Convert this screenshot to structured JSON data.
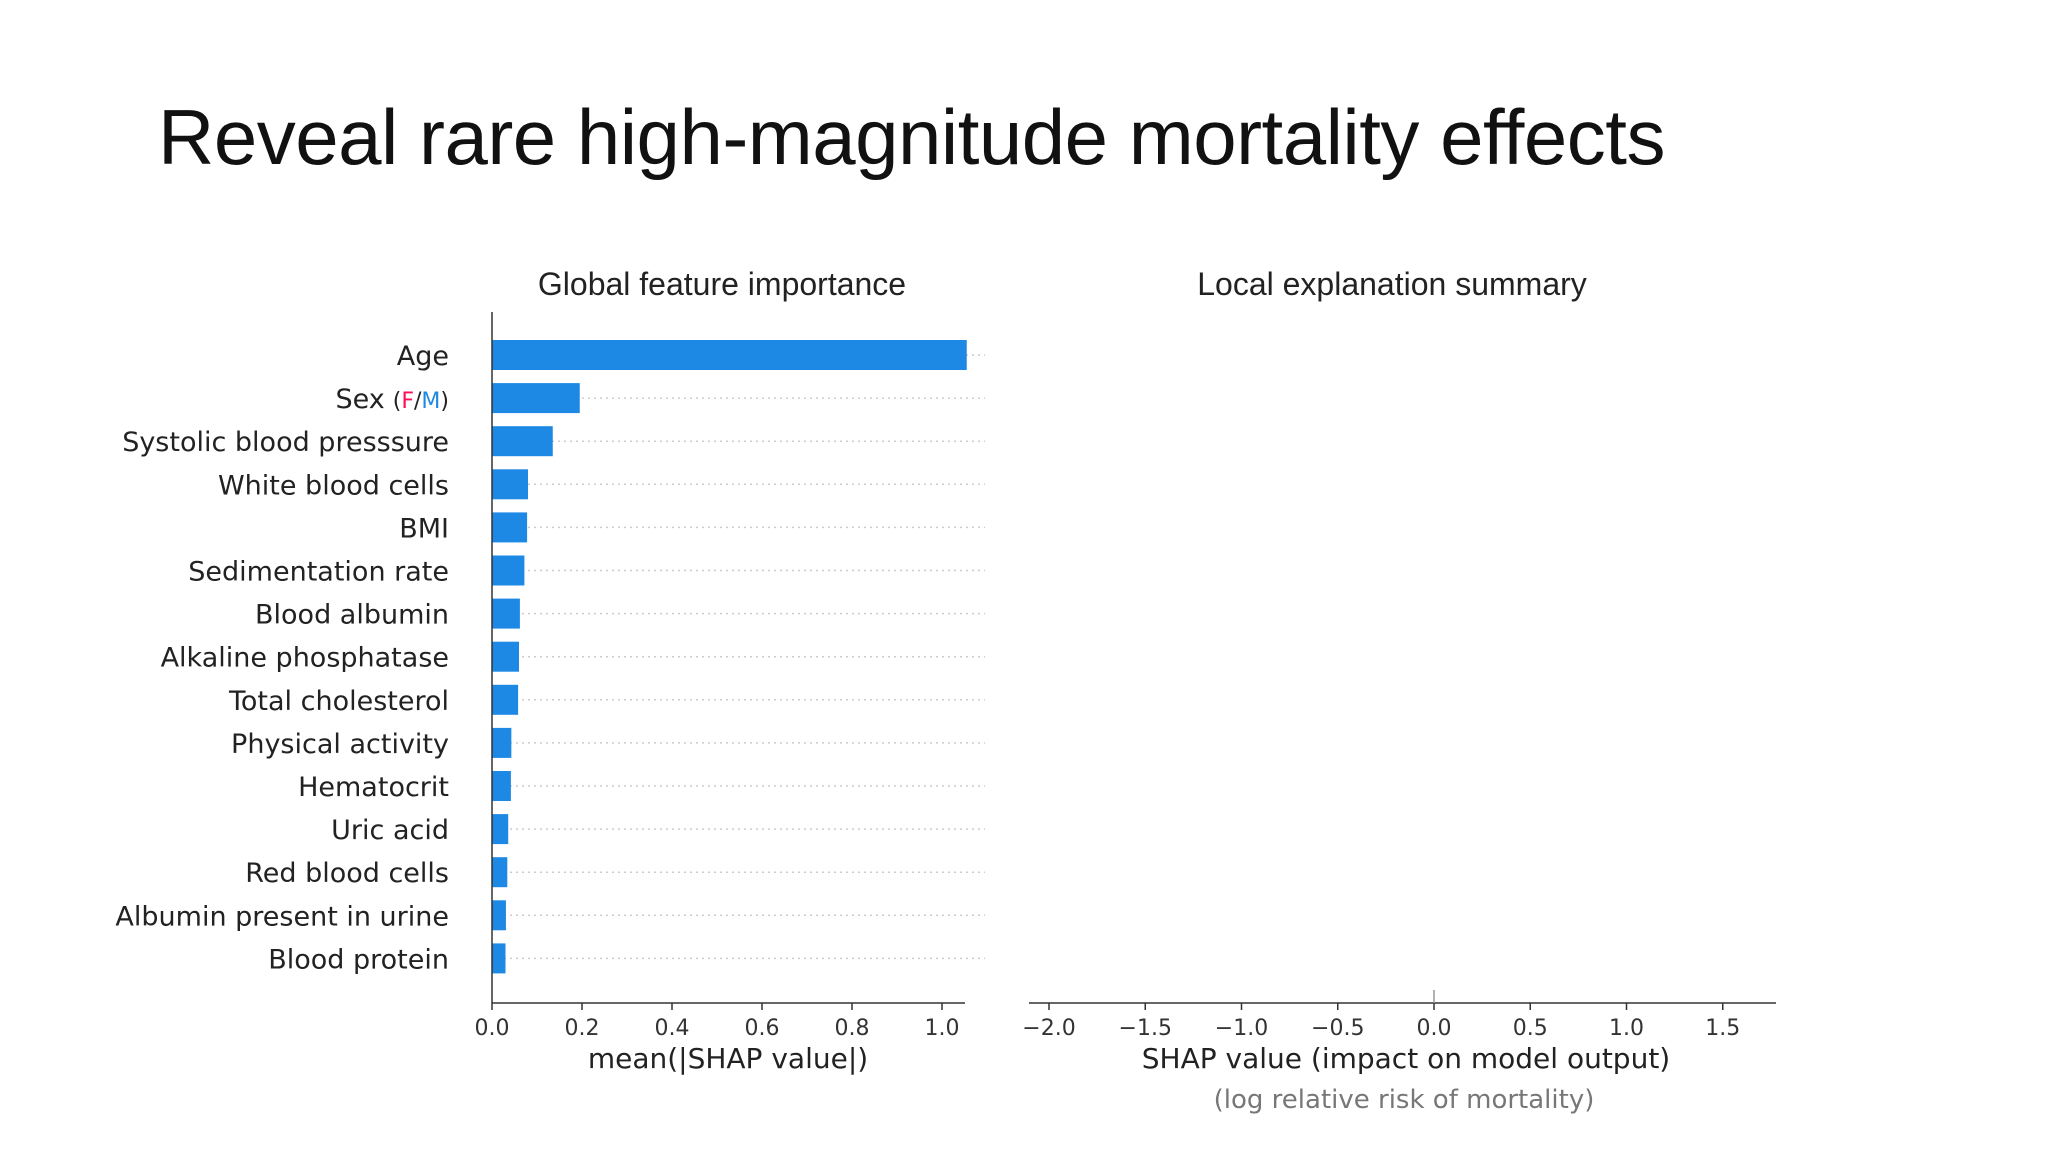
{
  "slide": {
    "title": "Reveal rare high-magnitude mortality effects"
  },
  "colors": {
    "bar": "#1E88E5",
    "female": "#FF0D57",
    "male": "#1E88E5",
    "axis": "#333333",
    "grid": "#cccccc",
    "note": "#777777"
  },
  "chart_data": [
    {
      "type": "bar",
      "orientation": "horizontal",
      "title": "Global feature importance",
      "xlabel": "mean(|SHAP value|)",
      "ylabel": "",
      "xlim": [
        0,
        1.1
      ],
      "xticks": [
        "0.0",
        "0.2",
        "0.4",
        "0.6",
        "0.8",
        "1.0"
      ],
      "grid": "dotted row lines",
      "categories": [
        "Age",
        "Sex",
        "Systolic blood presssure",
        "White blood cells",
        "BMI",
        "Sedimentation rate",
        "Blood albumin",
        "Alkaline phosphatase",
        "Total cholesterol",
        "Physical activity",
        "Hematocrit",
        "Uric acid",
        "Red blood cells",
        "Albumin present in urine",
        "Blood protein"
      ],
      "sex_label_suffix": {
        "open": "(",
        "f": "F",
        "sep": "/",
        "m": "M",
        "close": ")"
      },
      "values": [
        1.055,
        0.195,
        0.135,
        0.08,
        0.078,
        0.072,
        0.062,
        0.06,
        0.058,
        0.043,
        0.042,
        0.036,
        0.034,
        0.031,
        0.03
      ]
    },
    {
      "type": "scatter",
      "title": "Local explanation summary",
      "xlabel": "SHAP value (impact on model output)",
      "xlabel_note": "(log relative risk of mortality)",
      "xlim": [
        -2.15,
        1.78
      ],
      "xticks": [
        -2.0,
        -1.5,
        -1.0,
        -0.5,
        0.0,
        0.5,
        1.0,
        1.5
      ],
      "xtick_labels": [
        "−2.0",
        "−1.5",
        "−1.0",
        "−0.5",
        "0.0",
        "0.5",
        "1.0",
        "1.5"
      ],
      "points": []
    }
  ]
}
